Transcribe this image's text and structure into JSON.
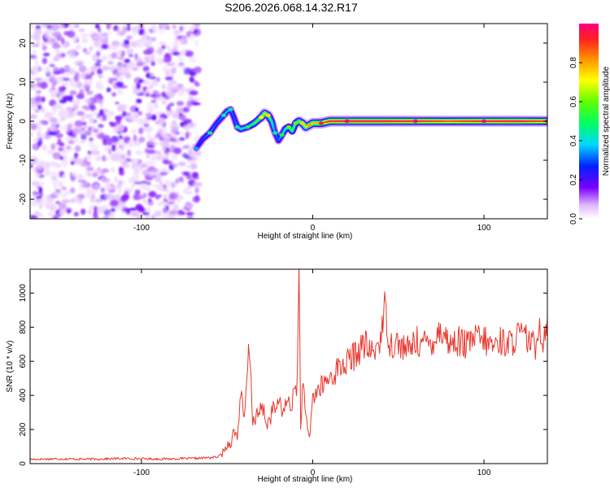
{
  "title": "S206.2026.068.14.32.R17",
  "chart_data": [
    {
      "type": "heatmap",
      "title": "S206.2026.068.14.32.R17",
      "xlabel": "Height of straight line (km)",
      "ylabel": "Frequency (Hz)",
      "xlim": [
        -165,
        137
      ],
      "ylim": [
        -25,
        25
      ],
      "xticks": [
        -100,
        0,
        100
      ],
      "xtick_labels": [
        "-100",
        "0",
        "100"
      ],
      "yticks": [
        -20,
        -10,
        0,
        10,
        20
      ],
      "ytick_labels": [
        "-20",
        "-10",
        "0",
        "10",
        "20"
      ],
      "noise_region_x": [
        -165,
        -67
      ],
      "ridge": {
        "x": [
          -68,
          -64,
          -60,
          -56,
          -52,
          -50,
          -48,
          -46,
          -44,
          -42,
          -38,
          -34,
          -30,
          -28,
          -26,
          -24,
          -22,
          -20,
          -18,
          -16,
          -14,
          -12,
          -10,
          -8,
          -6,
          -4,
          -2,
          0,
          5,
          10,
          20,
          40,
          60,
          80,
          100,
          120,
          137
        ],
        "y": [
          -7,
          -4.5,
          -3,
          -0.5,
          1.5,
          2.5,
          3,
          1,
          -1.5,
          -2,
          -1.5,
          -0.5,
          1,
          2,
          1.5,
          0,
          -3,
          -5,
          -3.5,
          -2,
          -1.5,
          -2.5,
          -0.5,
          0,
          -0.5,
          -1.5,
          -1,
          -0.5,
          -0.5,
          0,
          0,
          0,
          0,
          0,
          0,
          0,
          0
        ],
        "amplitude": [
          0.25,
          0.3,
          0.35,
          0.3,
          0.35,
          0.4,
          0.35,
          0.3,
          0.35,
          0.45,
          0.4,
          0.55,
          0.6,
          0.7,
          0.65,
          0.5,
          0.35,
          0.3,
          0.4,
          0.45,
          0.5,
          0.55,
          0.5,
          0.6,
          0.65,
          0.7,
          0.7,
          0.75,
          0.85,
          0.95,
          0.98,
          0.98,
          0.95,
          0.9,
          0.95,
          0.98,
          0.9
        ]
      },
      "colorbar": {
        "label": "Normalized spectral amplitude",
        "range": [
          0,
          1
        ],
        "ticks": [
          0.0,
          0.2,
          0.4,
          0.6,
          0.8
        ],
        "tick_labels": [
          "0.0",
          "0.2",
          "0.4",
          "0.6",
          "0.8"
        ]
      }
    },
    {
      "type": "line",
      "xlabel": "Height of straight line (km)",
      "ylabel": "SNR (10 * v/v)",
      "xlim": [
        -165,
        137
      ],
      "ylim": [
        0,
        1140
      ],
      "xticks": [
        -100,
        0,
        100
      ],
      "xtick_labels": [
        "-100",
        "0",
        "100"
      ],
      "yticks": [
        0,
        200,
        400,
        600,
        800,
        1000
      ],
      "ytick_labels": [
        "0",
        "200",
        "400",
        "600",
        "800",
        "1000"
      ],
      "series": [
        {
          "name": "SNR",
          "color": "#e8372c",
          "x": [
            -165,
            -150,
            -130,
            -110,
            -90,
            -70,
            -60,
            -55,
            -52,
            -50,
            -48,
            -46,
            -44,
            -42,
            -40,
            -38,
            -37,
            -35,
            -33,
            -31,
            -29,
            -27,
            -25,
            -23,
            -21,
            -19,
            -17,
            -15,
            -13,
            -11,
            -9,
            -8,
            -7,
            -6,
            -4,
            -2,
            0,
            5,
            10,
            15,
            20,
            25,
            30,
            35,
            40,
            42,
            45,
            50,
            55,
            60,
            65,
            70,
            75,
            80,
            85,
            90,
            95,
            100,
            105,
            110,
            115,
            120,
            125,
            130,
            132,
            134,
            137
          ],
          "y": [
            25,
            28,
            26,
            30,
            27,
            30,
            35,
            40,
            70,
            110,
            120,
            190,
            160,
            420,
            240,
            560,
            680,
            260,
            270,
            300,
            330,
            230,
            260,
            330,
            310,
            380,
            280,
            390,
            330,
            400,
            490,
            1140,
            200,
            480,
            260,
            140,
            390,
            450,
            500,
            560,
            590,
            640,
            700,
            640,
            750,
            930,
            700,
            710,
            660,
            720,
            700,
            720,
            790,
            700,
            720,
            690,
            740,
            720,
            690,
            720,
            700,
            760,
            730,
            680,
            850,
            700,
            860
          ]
        }
      ]
    }
  ]
}
